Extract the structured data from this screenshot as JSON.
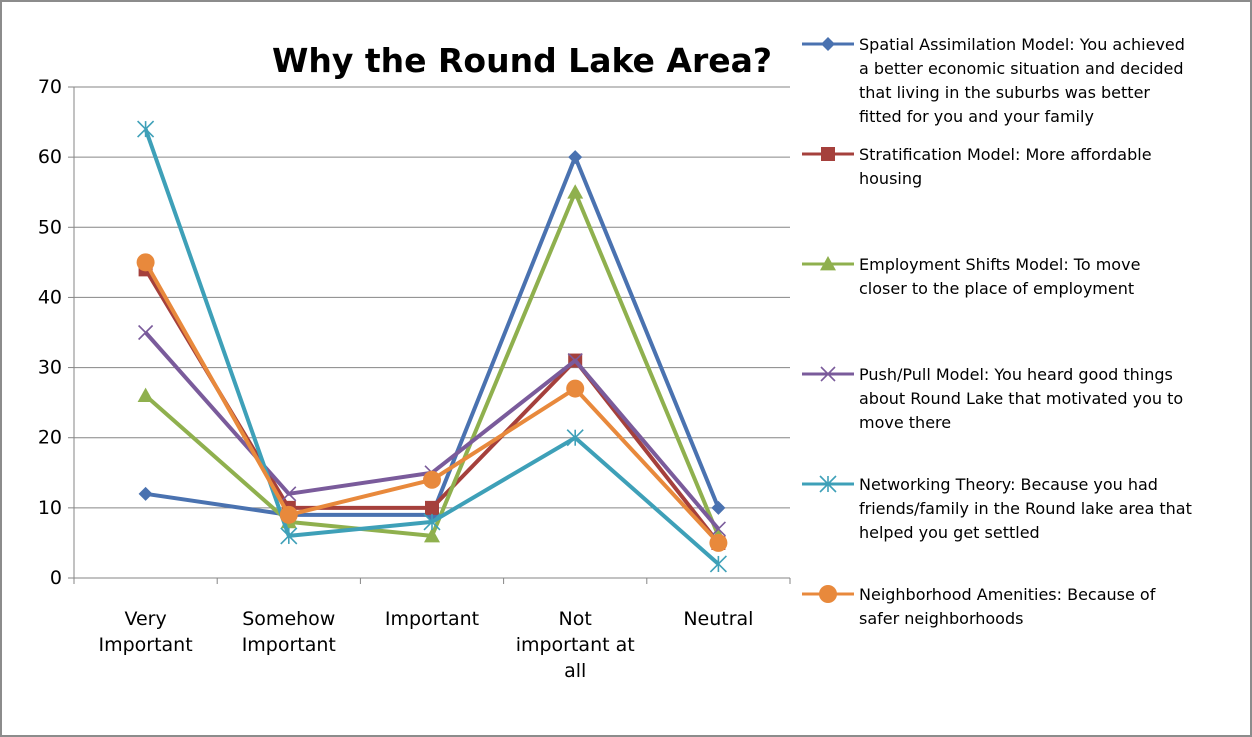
{
  "chart_data": {
    "type": "line",
    "title": "Why the Round Lake Area?",
    "categories": [
      [
        "Very",
        "Important"
      ],
      [
        "Somehow",
        "Important"
      ],
      [
        "Important"
      ],
      [
        "Not",
        "important at",
        "all"
      ],
      [
        "Neutral"
      ]
    ],
    "ylim": [
      0,
      70
    ],
    "yticks": [
      0,
      10,
      20,
      30,
      40,
      50,
      60,
      70
    ],
    "grid": true,
    "legend_position": "right",
    "series": [
      {
        "name": "Spatial Assimilation Model: You achieved a better economic situation and decided that living in the suburbs was better fitted for you and your family",
        "legend_lines": [
          "Spatial Assimilation Model: You achieved",
          "a better economic situation and decided",
          "that living in the suburbs was better",
          "fitted for you and your family"
        ],
        "color": "#4a72b0",
        "marker": "diamond",
        "values": [
          12,
          9,
          9,
          60,
          10
        ]
      },
      {
        "name": "Stratification Model: More affordable housing",
        "legend_lines": [
          "Stratification Model: More affordable",
          "housing"
        ],
        "color": "#a5403c",
        "marker": "square",
        "values": [
          44,
          10,
          10,
          31,
          5
        ]
      },
      {
        "name": "Employment Shifts Model: To move closer to the place of employment",
        "legend_lines": [
          "Employment Shifts Model: To move",
          "closer to the place of employment"
        ],
        "color": "#8fb04e",
        "marker": "triangle",
        "values": [
          26,
          8,
          6,
          55,
          6
        ]
      },
      {
        "name": "Push/Pull Model: You heard good things about Round Lake that motivated you to move there",
        "legend_lines": [
          "Push/Pull Model: You heard good things",
          "about Round Lake that motivated you to",
          "move there"
        ],
        "color": "#7a5b9b",
        "marker": "x",
        "values": [
          35,
          12,
          15,
          31,
          7
        ]
      },
      {
        "name": "Networking Theory: Because you had friends/family in the Round lake area that helped you get settled",
        "legend_lines": [
          "Networking Theory: Because you had",
          "friends/family in the Round lake area that",
          "helped you get settled"
        ],
        "color": "#3ea0b8",
        "marker": "star",
        "values": [
          64,
          6,
          8,
          20,
          2
        ]
      },
      {
        "name": "Neighborhood Amenities: Because of safer neighborhoods",
        "legend_lines": [
          "Neighborhood Amenities: Because of",
          "safer neighborhoods"
        ],
        "color": "#e8893c",
        "marker": "circle",
        "values": [
          45,
          9,
          14,
          27,
          5
        ]
      }
    ]
  }
}
